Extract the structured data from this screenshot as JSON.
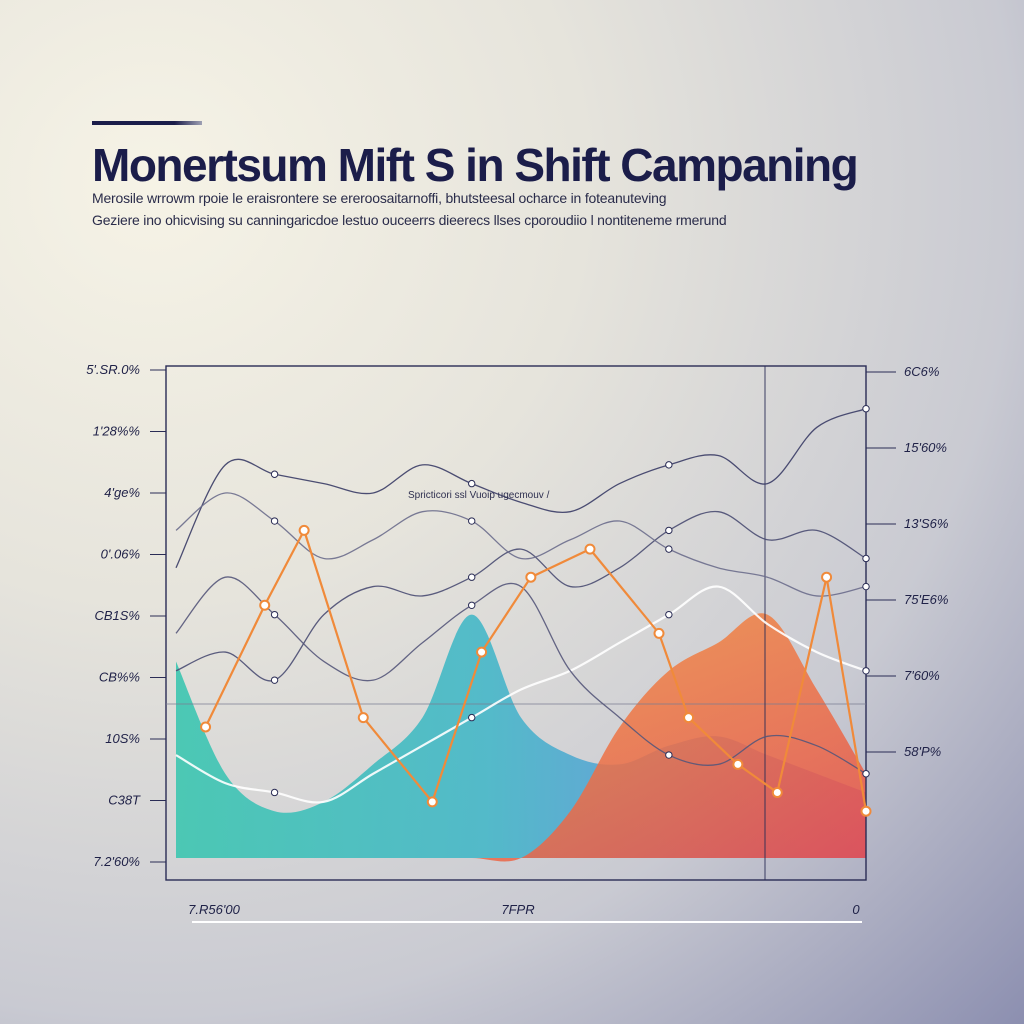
{
  "header": {
    "title": "Monertsum Mift S in Shift Campaning",
    "subtitle_lines": [
      "Merosile wrrowm rpoie le eraisrontere se ereroosaitarnoffi, bhutsteesal ocharce in foteanuteving",
      "Geziere ino ohicvising su canningaricdoe lestuo ouceerrs dieerecs llses cporoudiio l nontiteneme rmerund"
    ]
  },
  "colors": {
    "title": "#1b1d4a",
    "axis": "#2a2c55",
    "accent_orange": "#f08a3a",
    "accent_teal": "#3cc6b0",
    "accent_blue": "#5a9ed8",
    "accent_purple": "#8a5ad0"
  },
  "chart_data": {
    "type": "line",
    "title": "",
    "xlabel": "",
    "ylabel": "",
    "annotation": "Spricticori ssl Vuoip ugecmouv /",
    "y_left_ticks": [
      "5'.SR.0%",
      "1'28%%",
      "4'ge%",
      "0'.06%",
      "CB1S%",
      "CB%%",
      "10S%",
      "C38T",
      "7.2'60%"
    ],
    "y_right_ticks": [
      "6C6%",
      "15'60%",
      "13'S6%",
      "75'E6%",
      "7'60%",
      "58'P%"
    ],
    "x_ticks": [
      "7.R56'00",
      "7FPR",
      "0"
    ],
    "ylim": [
      0,
      100
    ],
    "x": [
      0,
      1,
      2,
      3,
      4,
      5,
      6,
      7,
      8,
      9,
      10,
      11,
      12,
      13,
      14
    ],
    "series": [
      {
        "values": [
          62,
          84,
          82,
          80,
          78,
          84,
          80,
          76,
          74,
          80,
          84,
          86,
          80,
          92,
          96
        ]
      },
      {
        "values": [
          40,
          44,
          38,
          52,
          58,
          56,
          60,
          66,
          58,
          62,
          70,
          74,
          68,
          70,
          64
        ]
      },
      {
        "values": [
          22,
          16,
          14,
          12,
          18,
          24,
          30,
          36,
          40,
          46,
          52,
          58,
          50,
          44,
          40
        ]
      },
      {
        "values": [
          48,
          60,
          52,
          42,
          38,
          46,
          54,
          58,
          40,
          30,
          22,
          20,
          26,
          24,
          18
        ]
      },
      {
        "values": [
          70,
          78,
          72,
          64,
          68,
          74,
          72,
          64,
          68,
          72,
          66,
          62,
          60,
          56,
          58
        ]
      }
    ],
    "highlight_series": [
      {
        "x": [
          0.6,
          1.8,
          2.6,
          3.8,
          5.2,
          6.2,
          7.2,
          8.4,
          9.8,
          10.4,
          11.4,
          12.2,
          13.2,
          14.0
        ],
        "values": [
          28,
          54,
          70,
          30,
          12,
          44,
          60,
          66,
          48,
          30,
          20,
          14,
          60,
          10
        ]
      }
    ],
    "area_series": [
      {
        "values": [
          42,
          18,
          10,
          12,
          20,
          30,
          52,
          30,
          22,
          20,
          24,
          26,
          22,
          18,
          14
        ]
      },
      {
        "values": [
          0,
          0,
          0,
          0,
          0,
          0,
          0,
          0,
          10,
          28,
          40,
          46,
          52,
          36,
          18
        ]
      }
    ],
    "grid": false,
    "legend": "none"
  }
}
